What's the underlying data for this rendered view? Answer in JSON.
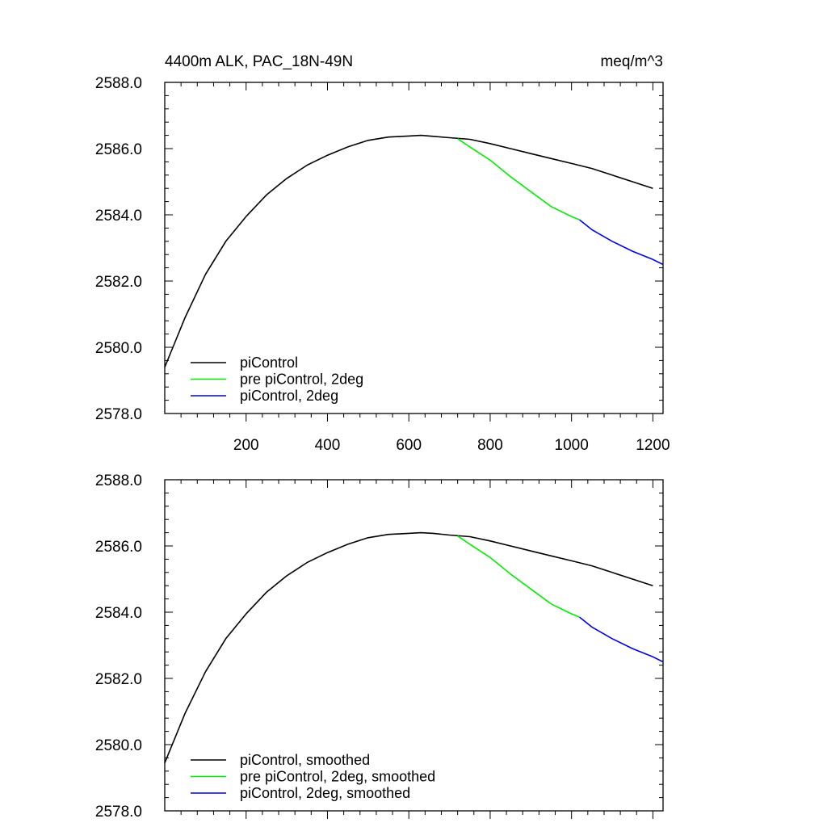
{
  "chart_data": [
    {
      "type": "line",
      "title_left": "4400m ALK, PAC_18N-49N",
      "title_right": "meq/m^3",
      "xlim": [
        0,
        1225
      ],
      "ylim": [
        2578.0,
        2588.0
      ],
      "xticks": [
        200,
        400,
        600,
        800,
        1000,
        1200
      ],
      "xtick_labels": [
        "200",
        "400",
        "600",
        "800",
        "1000",
        "1200"
      ],
      "yticks": [
        2578.0,
        2580.0,
        2582.0,
        2584.0,
        2586.0,
        2588.0
      ],
      "ytick_labels": [
        "2578.0",
        "2580.0",
        "2582.0",
        "2584.0",
        "2586.0",
        "2588.0"
      ],
      "legend_position": "bottom-left",
      "series": [
        {
          "name": "piControl",
          "color": "#000000",
          "x": [
            0,
            20,
            50,
            100,
            150,
            200,
            250,
            300,
            350,
            400,
            450,
            500,
            550,
            600,
            630,
            660,
            700,
            750,
            800,
            850,
            900,
            950,
            1000,
            1050,
            1100,
            1150,
            1200
          ],
          "y": [
            2579.4,
            2580.0,
            2580.9,
            2582.2,
            2583.2,
            2583.95,
            2584.6,
            2585.1,
            2585.5,
            2585.8,
            2586.05,
            2586.25,
            2586.35,
            2586.38,
            2586.4,
            2586.37,
            2586.33,
            2586.28,
            2586.15,
            2586.0,
            2585.85,
            2585.7,
            2585.55,
            2585.4,
            2585.2,
            2585.0,
            2584.8
          ]
        },
        {
          "name": "pre piControl, 2deg",
          "color": "#00ee00",
          "x": [
            720,
            750,
            800,
            850,
            900,
            950,
            1000,
            1020
          ],
          "y": [
            2586.3,
            2586.05,
            2585.65,
            2585.15,
            2584.7,
            2584.25,
            2583.95,
            2583.85
          ]
        },
        {
          "name": "piControl, 2deg",
          "color": "#0000ee",
          "x": [
            1020,
            1050,
            1100,
            1150,
            1200,
            1225
          ],
          "y": [
            2583.85,
            2583.55,
            2583.2,
            2582.9,
            2582.65,
            2582.5
          ]
        }
      ]
    },
    {
      "type": "line",
      "xlim": [
        0,
        1225
      ],
      "ylim": [
        2578.0,
        2588.0
      ],
      "xticks": [
        200,
        400,
        600,
        800,
        1000,
        1200
      ],
      "yticks": [
        2578.0,
        2580.0,
        2582.0,
        2584.0,
        2586.0,
        2588.0
      ],
      "ytick_labels": [
        "2578.0",
        "2580.0",
        "2582.0",
        "2584.0",
        "2586.0",
        "2588.0"
      ],
      "legend_position": "bottom-left",
      "series": [
        {
          "name": "piControl, smoothed",
          "color": "#000000",
          "x": [
            0,
            20,
            50,
            100,
            150,
            200,
            250,
            300,
            350,
            400,
            450,
            500,
            550,
            600,
            630,
            660,
            700,
            750,
            800,
            850,
            900,
            950,
            1000,
            1050,
            1100,
            1150,
            1200
          ],
          "y": [
            2579.45,
            2580.05,
            2580.95,
            2582.2,
            2583.2,
            2583.95,
            2584.6,
            2585.1,
            2585.5,
            2585.8,
            2586.05,
            2586.25,
            2586.35,
            2586.38,
            2586.4,
            2586.38,
            2586.33,
            2586.28,
            2586.15,
            2586.0,
            2585.85,
            2585.7,
            2585.55,
            2585.4,
            2585.2,
            2585.0,
            2584.8
          ]
        },
        {
          "name": "pre piControl, 2deg, smoothed",
          "color": "#00ee00",
          "x": [
            720,
            750,
            800,
            850,
            900,
            950,
            1000,
            1020
          ],
          "y": [
            2586.3,
            2586.05,
            2585.65,
            2585.15,
            2584.7,
            2584.25,
            2583.95,
            2583.85
          ]
        },
        {
          "name": "piControl, 2deg, smoothed",
          "color": "#0000ee",
          "x": [
            1020,
            1050,
            1100,
            1150,
            1200,
            1225
          ],
          "y": [
            2583.85,
            2583.55,
            2583.2,
            2582.9,
            2582.65,
            2582.5
          ]
        }
      ]
    }
  ]
}
